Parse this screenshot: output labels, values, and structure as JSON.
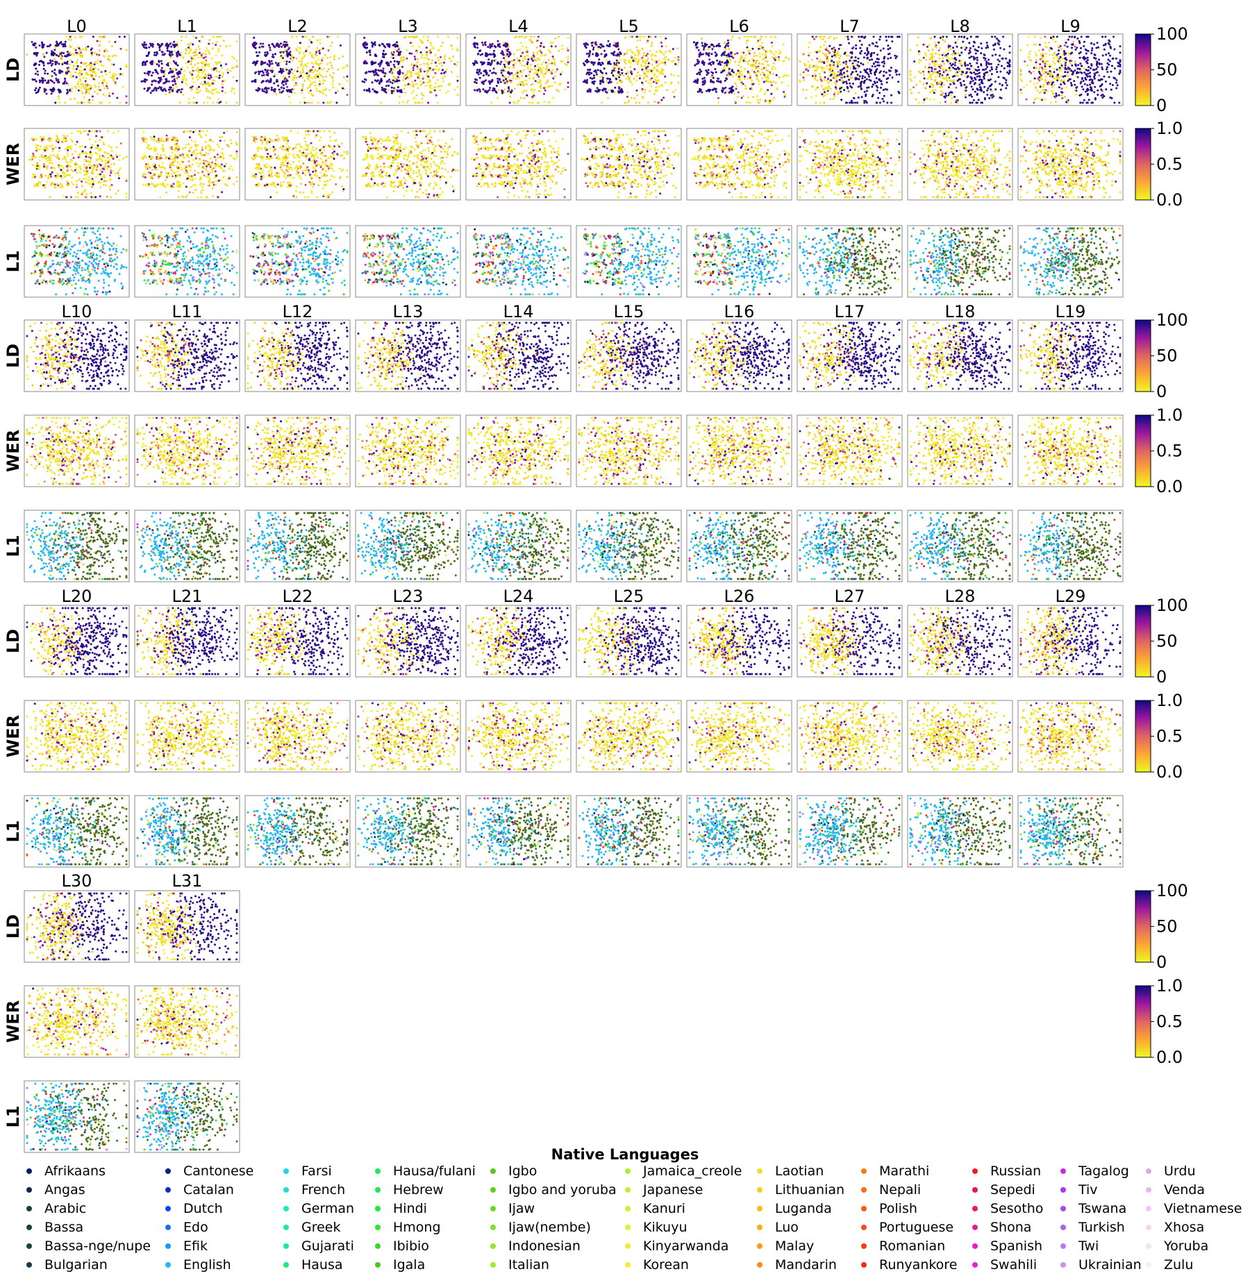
{
  "chart_data": {
    "type": "scatter",
    "layers": [
      "L0",
      "L1",
      "L2",
      "L3",
      "L4",
      "L5",
      "L6",
      "L7",
      "L8",
      "L9",
      "L10",
      "L11",
      "L12",
      "L13",
      "L14",
      "L15",
      "L16",
      "L17",
      "L18",
      "L19",
      "L20",
      "L21",
      "L22",
      "L23",
      "L24",
      "L25",
      "L26",
      "L27",
      "L28",
      "L29",
      "L30",
      "L31"
    ],
    "row_labels": [
      "LD",
      "WER",
      "L1"
    ],
    "colorbars": {
      "LD": {
        "ticks": [
          "100",
          "50",
          "0"
        ],
        "range": [
          0,
          100
        ],
        "colormap": "plasma_r"
      },
      "WER": {
        "ticks": [
          "1.0",
          "0.5",
          "0.0"
        ],
        "range": [
          0.0,
          1.0
        ],
        "colormap": "plasma_r"
      }
    },
    "legend": {
      "title": "Native Languages",
      "placement": "bottom",
      "entries": [
        {
          "name": "Afrikaans",
          "color": "#0b1a6e"
        },
        {
          "name": "Angas",
          "color": "#14254f"
        },
        {
          "name": "Arabic",
          "color": "#17403f"
        },
        {
          "name": "Bassa",
          "color": "#0f4a2a"
        },
        {
          "name": "Bassa-nge/nupe",
          "color": "#154a2e"
        },
        {
          "name": "Bulgarian",
          "color": "#1a3a4a"
        },
        {
          "name": "Cantonese",
          "color": "#0a1f8a"
        },
        {
          "name": "Catalan",
          "color": "#0d2fc0"
        },
        {
          "name": "Dutch",
          "color": "#1145e0"
        },
        {
          "name": "Edo",
          "color": "#1a6ff0"
        },
        {
          "name": "Efik",
          "color": "#1f95f5"
        },
        {
          "name": "English",
          "color": "#1fb8f5"
        },
        {
          "name": "Farsi",
          "color": "#1fd6e8"
        },
        {
          "name": "French",
          "color": "#1fe0d0"
        },
        {
          "name": "German",
          "color": "#1fe8bb"
        },
        {
          "name": "Greek",
          "color": "#1fe8a5"
        },
        {
          "name": "Gujarati",
          "color": "#1fe890"
        },
        {
          "name": "Hausa",
          "color": "#1fe87a"
        },
        {
          "name": "Hausa/fulani",
          "color": "#1fe865"
        },
        {
          "name": "Hebrew",
          "color": "#1fe850"
        },
        {
          "name": "Hindi",
          "color": "#22e83a"
        },
        {
          "name": "Hmong",
          "color": "#2ee82a"
        },
        {
          "name": "Ibibio",
          "color": "#3ad824"
        },
        {
          "name": "Igala",
          "color": "#46c820"
        },
        {
          "name": "Igbo",
          "color": "#52c81e"
        },
        {
          "name": "Igbo and yoruba",
          "color": "#5fd01f"
        },
        {
          "name": "Ijaw",
          "color": "#6ed821"
        },
        {
          "name": "Ijaw(nembe)",
          "color": "#7ee024"
        },
        {
          "name": "Indonesian",
          "color": "#8ee828"
        },
        {
          "name": "Italian",
          "color": "#9eec2b"
        },
        {
          "name": "Jamaica_creole",
          "color": "#aef02e"
        },
        {
          "name": "Japanese",
          "color": "#bdf031"
        },
        {
          "name": "Kanuri",
          "color": "#ccf034"
        },
        {
          "name": "Kikuyu",
          "color": "#dbf036"
        },
        {
          "name": "Kinyarwanda",
          "color": "#eaf038"
        },
        {
          "name": "Korean",
          "color": "#f5ec38"
        },
        {
          "name": "Laotian",
          "color": "#f8dc30"
        },
        {
          "name": "Lithuanian",
          "color": "#f8cc28"
        },
        {
          "name": "Luganda",
          "color": "#f8bc22"
        },
        {
          "name": "Luo",
          "color": "#f8ac1e"
        },
        {
          "name": "Malay",
          "color": "#f89c1b"
        },
        {
          "name": "Mandarin",
          "color": "#f88c18"
        },
        {
          "name": "Marathi",
          "color": "#f87c16"
        },
        {
          "name": "Nepali",
          "color": "#f86c14"
        },
        {
          "name": "Polish",
          "color": "#f85c12"
        },
        {
          "name": "Portuguese",
          "color": "#f84c10"
        },
        {
          "name": "Romanian",
          "color": "#f83c10"
        },
        {
          "name": "Runyankore",
          "color": "#f82c12"
        },
        {
          "name": "Russian",
          "color": "#f01e20"
        },
        {
          "name": "Sepedi",
          "color": "#e8184a"
        },
        {
          "name": "Sesotho",
          "color": "#e81870"
        },
        {
          "name": "Shona",
          "color": "#e81c98"
        },
        {
          "name": "Spanish",
          "color": "#e820c0"
        },
        {
          "name": "Swahili",
          "color": "#e024d8"
        },
        {
          "name": "Tagalog",
          "color": "#c82ae8"
        },
        {
          "name": "Tiv",
          "color": "#b034f0"
        },
        {
          "name": "Tswana",
          "color": "#a848f0"
        },
        {
          "name": "Turkish",
          "color": "#b060f0"
        },
        {
          "name": "Twi",
          "color": "#c078f0"
        },
        {
          "name": "Ukrainian",
          "color": "#d090f0"
        },
        {
          "name": "Urdu",
          "color": "#dca8f0"
        },
        {
          "name": "Venda",
          "color": "#e8b8f0"
        },
        {
          "name": "Vietnamese",
          "color": "#eec8f0"
        },
        {
          "name": "Xhosa",
          "color": "#f2d6f0"
        },
        {
          "name": "Yoruba",
          "color": "#f4e2f2"
        },
        {
          "name": "Zulu",
          "color": "#f6eef6"
        }
      ]
    },
    "l1_palette_dominant": {
      "left_cluster": "#1fb8f5",
      "right_cluster": "#4a6b1a"
    }
  }
}
